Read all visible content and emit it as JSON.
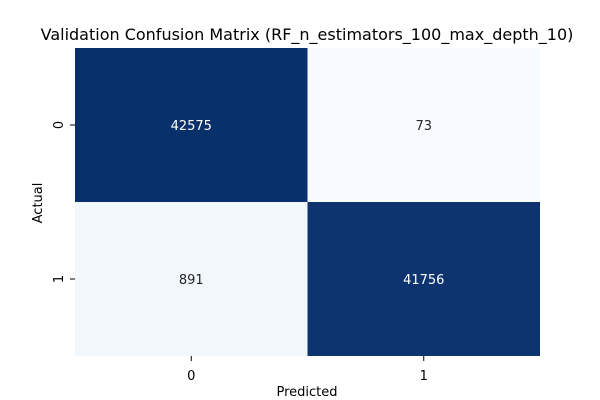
{
  "chart_data": {
    "type": "heatmap",
    "title": "Validation Confusion Matrix (RF_n_estimators_100_max_depth_10)",
    "xlabel": "Predicted",
    "ylabel": "Actual",
    "x_categories": [
      "0",
      "1"
    ],
    "y_categories": [
      "0",
      "1"
    ],
    "values": [
      [
        42575,
        73
      ],
      [
        891,
        41756
      ]
    ],
    "colormap": "Blues",
    "colors": {
      "high": "#08306b",
      "low": "#f7fbff",
      "text_on_dark": "#ffffff",
      "text_on_light": "#262626",
      "axis": "#000000"
    },
    "colorbar": false
  }
}
